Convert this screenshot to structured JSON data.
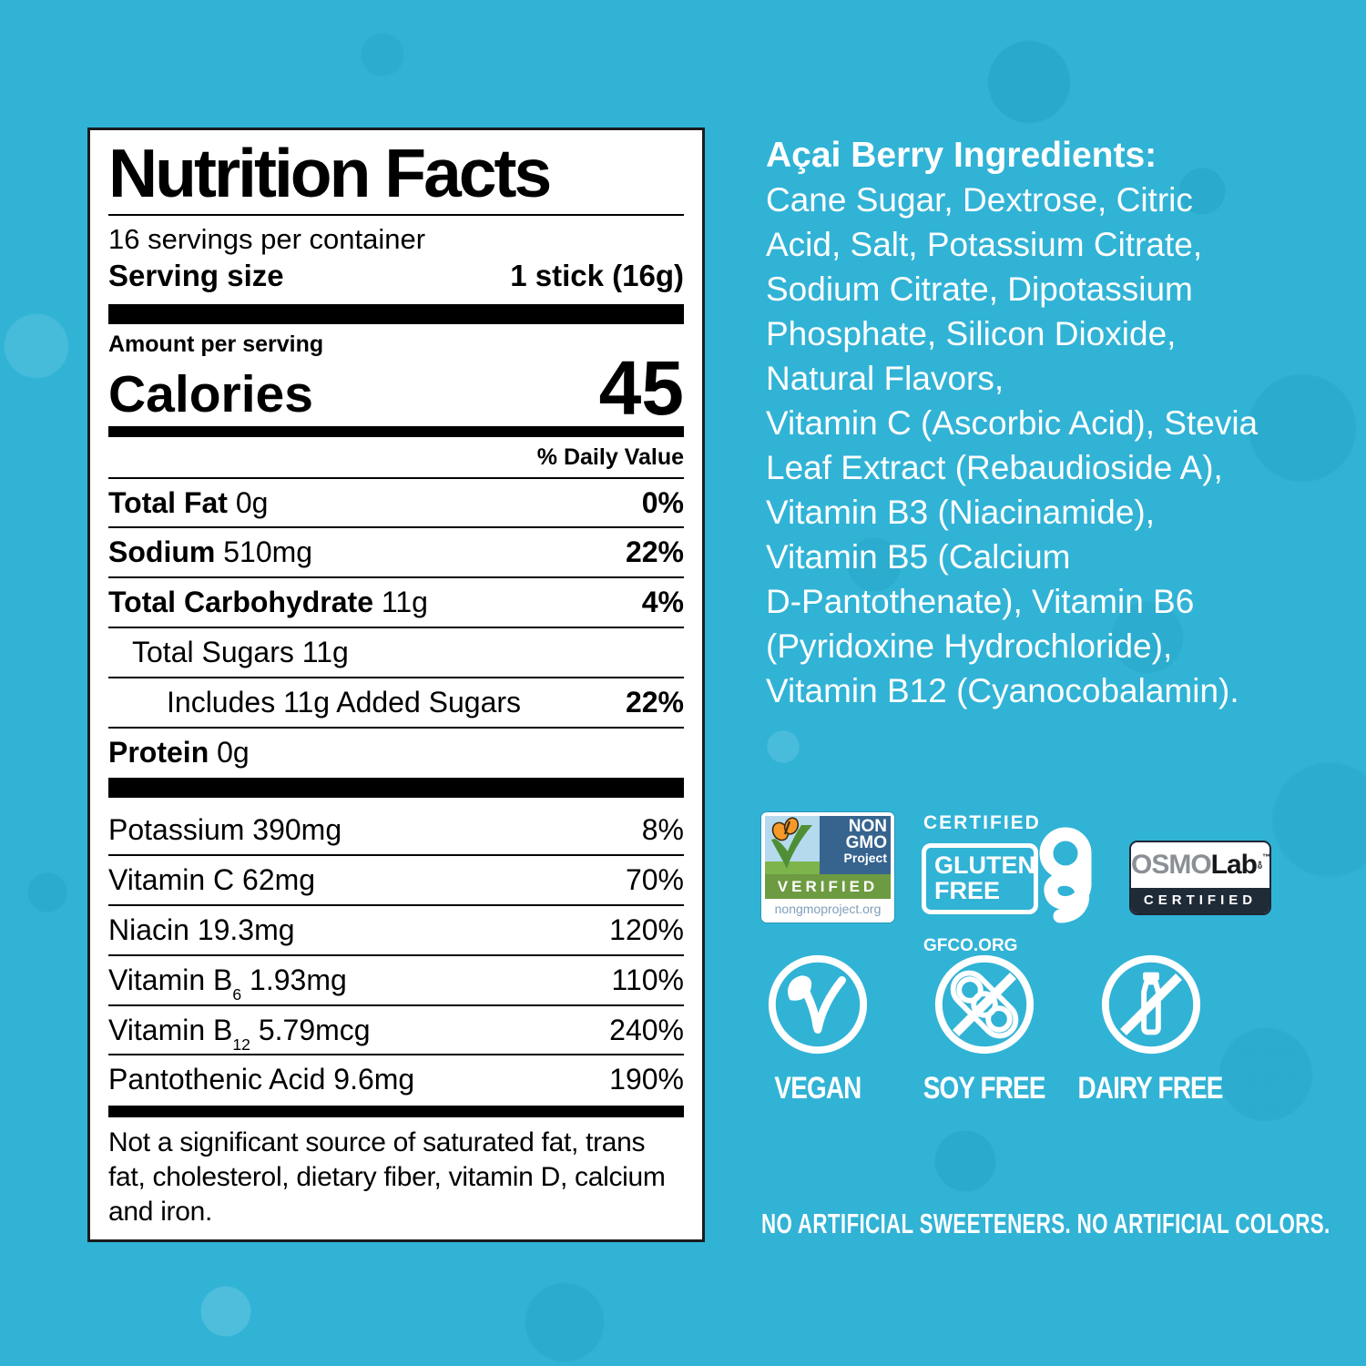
{
  "background_color": "#31b3d6",
  "nutrition_panel": {
    "title": "Nutrition Facts",
    "servings_per_container": "16 servings per container",
    "serving_size_label": "Serving size",
    "serving_size_value": "1 stick (16g)",
    "amount_per_serving": "Amount per serving",
    "calories_label": "Calories",
    "calories_value": "45",
    "daily_value_header": "% Daily Value",
    "rows": [
      {
        "name": "Total Fat",
        "amount": "0g",
        "dv": "0%",
        "bold": true,
        "dv_bold": true,
        "indent": 0
      },
      {
        "name": "Sodium",
        "amount": "510mg",
        "dv": "22%",
        "bold": true,
        "dv_bold": true,
        "indent": 0
      },
      {
        "name": "Total Carbohydrate",
        "amount": "11g",
        "dv": "4%",
        "bold": true,
        "dv_bold": true,
        "indent": 0
      },
      {
        "name": "Total Sugars",
        "amount": "11g",
        "dv": "",
        "bold": false,
        "dv_bold": false,
        "indent": 1
      },
      {
        "name": "Includes 11g Added Sugars",
        "amount": "",
        "dv": "22%",
        "bold": false,
        "dv_bold": true,
        "indent": 2
      },
      {
        "name": "Protein",
        "amount": "0g",
        "dv": "",
        "bold": true,
        "dv_bold": false,
        "indent": 0
      }
    ],
    "micronutrients": [
      {
        "name": "Potassium",
        "sub": "",
        "amount": "390mg",
        "dv": "8%"
      },
      {
        "name": "Vitamin C",
        "sub": "",
        "amount": "62mg",
        "dv": "70%"
      },
      {
        "name": "Niacin",
        "sub": "",
        "amount": "19.3mg",
        "dv": "120%"
      },
      {
        "name": "Vitamin B",
        "sub": "6",
        "amount": "1.93mg",
        "dv": "110%"
      },
      {
        "name": "Vitamin B",
        "sub": "12",
        "amount": "5.79mcg",
        "dv": "240%"
      },
      {
        "name": "Pantothenic Acid",
        "sub": "",
        "amount": "9.6mg",
        "dv": "190%"
      }
    ],
    "footnote": "Not a significant source of saturated fat, trans fat, cholesterol, dietary fiber, vitamin D, calcium and iron."
  },
  "ingredients": {
    "heading": "Açai Berry Ingredients:",
    "lines": [
      "Cane Sugar, Dextrose, Citric",
      "Acid, Salt, Potassium Citrate,",
      "Sodium Citrate, Dipotassium",
      "Phosphate, Silicon Dioxide,",
      "Natural Flavors,",
      "Vitamin C (Ascorbic Acid), Stevia",
      "Leaf Extract (Rebaudioside A),",
      "Vitamin B3 (Niacinamide),",
      "Vitamin B5 (Calcium",
      "D-Pantothenate), Vitamin B6",
      "(Pyridoxine Hydrochloride),",
      "Vitamin B12 (Cyanocobalamin)."
    ]
  },
  "badges": {
    "non_gmo": {
      "line1": "NON",
      "line2": "GMO",
      "line3": "Project",
      "verified": "VERIFIED",
      "url": "nongmoproject.org",
      "colors": {
        "sky": "#b5d9ed",
        "box_blue": "#36648e",
        "green_bar": "#6d9b41",
        "url_text": "#7f9eba",
        "butterfly": "#f59a28",
        "check_green": "#4e8f35"
      }
    },
    "gluten_free": {
      "certified": "CERTIFIED",
      "line1": "GLUTEN",
      "line2": "FREE",
      "org": "GFCO.ORG",
      "tm": "™"
    },
    "osmolab": {
      "brand_gray": "OSMO",
      "brand_dark": "Lab",
      "tm": "™",
      "certified": "CERTIFIED",
      "colors": {
        "gray": "#8a9096",
        "dark": "#16181b",
        "bar": "#1f2b37"
      }
    }
  },
  "diet_icons": [
    {
      "label": "VEGAN",
      "icon": "vegan-plant-icon"
    },
    {
      "label": "SOY FREE",
      "icon": "no-soy-icon"
    },
    {
      "label": "DAIRY FREE",
      "icon": "no-dairy-icon"
    }
  ],
  "footer": {
    "claim": "NO ARTIFICIAL SWEETENERS. NO ARTIFICIAL COLORS."
  }
}
